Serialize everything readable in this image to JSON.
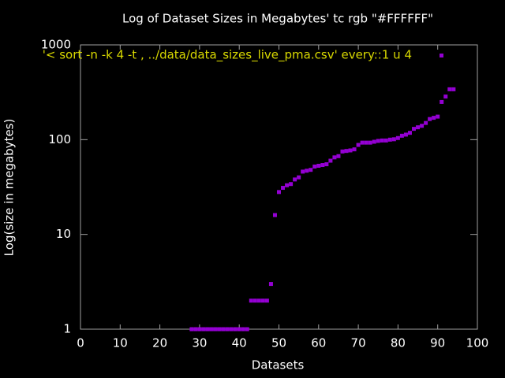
{
  "chart_data": {
    "type": "scatter",
    "title": "Log of Dataset Sizes in Megabytes' tc rgb \"#FFFFFF\"",
    "xlabel": "Datasets",
    "ylabel": "Log(size in megabytes)",
    "xlim": [
      0,
      100
    ],
    "xticks": [
      0,
      10,
      20,
      30,
      40,
      50,
      60,
      70,
      80,
      90,
      100
    ],
    "ylim": [
      1,
      1000
    ],
    "yticks": [
      1,
      10,
      100,
      1000
    ],
    "log_y": true,
    "series": [
      {
        "name": "'< sort -n -k 4 -t , ../data/data_sizes_live_pma.csv' every::1 u 4",
        "color": "#9400d3",
        "x": [
          28,
          29,
          30,
          31,
          32,
          33,
          34,
          35,
          36,
          37,
          38,
          39,
          40,
          41,
          42,
          43,
          44,
          45,
          46,
          47,
          48,
          49,
          50,
          51,
          52,
          53,
          54,
          55,
          56,
          57,
          58,
          59,
          60,
          61,
          62,
          63,
          64,
          65,
          66,
          67,
          68,
          69,
          70,
          71,
          72,
          73,
          74,
          75,
          76,
          77,
          78,
          79,
          80,
          81,
          82,
          83,
          84,
          85,
          86,
          87,
          88,
          89,
          90,
          91,
          92,
          93,
          94
        ],
        "values": [
          1,
          1,
          1,
          1,
          1,
          1,
          1,
          1,
          1,
          1,
          1,
          1,
          1,
          1,
          1,
          2,
          2,
          2,
          2,
          2,
          3,
          16,
          28,
          31,
          33,
          34,
          38,
          40,
          46,
          47,
          48,
          52,
          53,
          54,
          55,
          60,
          65,
          67,
          75,
          76,
          77,
          79,
          88,
          93,
          93,
          93,
          95,
          97,
          98,
          98,
          100,
          101,
          104,
          110,
          113,
          118,
          130,
          135,
          140,
          150,
          165,
          170,
          175,
          250,
          285,
          340,
          340
        ]
      }
    ]
  }
}
